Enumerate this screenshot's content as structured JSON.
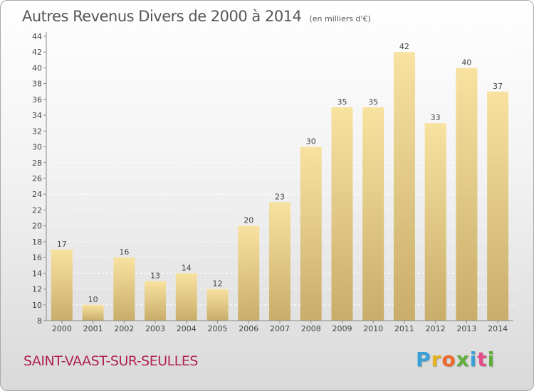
{
  "header": {
    "title": "Autres Revenus Divers de 2000 à 2014",
    "subtitle": "(en milliers d'€)"
  },
  "footer": {
    "location": "SAINT-VAAST-SUR-SEULLES",
    "brand_letters": [
      "P",
      "r",
      "o",
      "x",
      "i",
      "t",
      "i"
    ],
    "brand_colors": [
      "#3aa0d8",
      "#e8b21c",
      "#ef6a2a",
      "#5fae3a",
      "#3aa0d8",
      "#e54c8c",
      "#5fae3a"
    ]
  },
  "chart_data": {
    "type": "bar",
    "title": "Autres Revenus Divers de 2000 à 2014",
    "subtitle": "(en milliers d'€)",
    "categories": [
      "2000",
      "2001",
      "2002",
      "2003",
      "2004",
      "2005",
      "2006",
      "2007",
      "2008",
      "2009",
      "2010",
      "2011",
      "2012",
      "2013",
      "2014"
    ],
    "values": [
      17,
      10,
      16,
      13,
      14,
      12,
      20,
      23,
      30,
      35,
      35,
      42,
      33,
      40,
      37
    ],
    "ylim": [
      8,
      44
    ],
    "yticks": [
      8,
      10,
      12,
      14,
      16,
      18,
      20,
      22,
      24,
      26,
      28,
      30,
      32,
      34,
      36,
      38,
      40,
      42,
      44
    ],
    "xlabel": "",
    "ylabel": "",
    "grid": "horizontal",
    "bar_color_light": "#f8e2a0",
    "bar_color_dark": "#c9ad6a"
  }
}
